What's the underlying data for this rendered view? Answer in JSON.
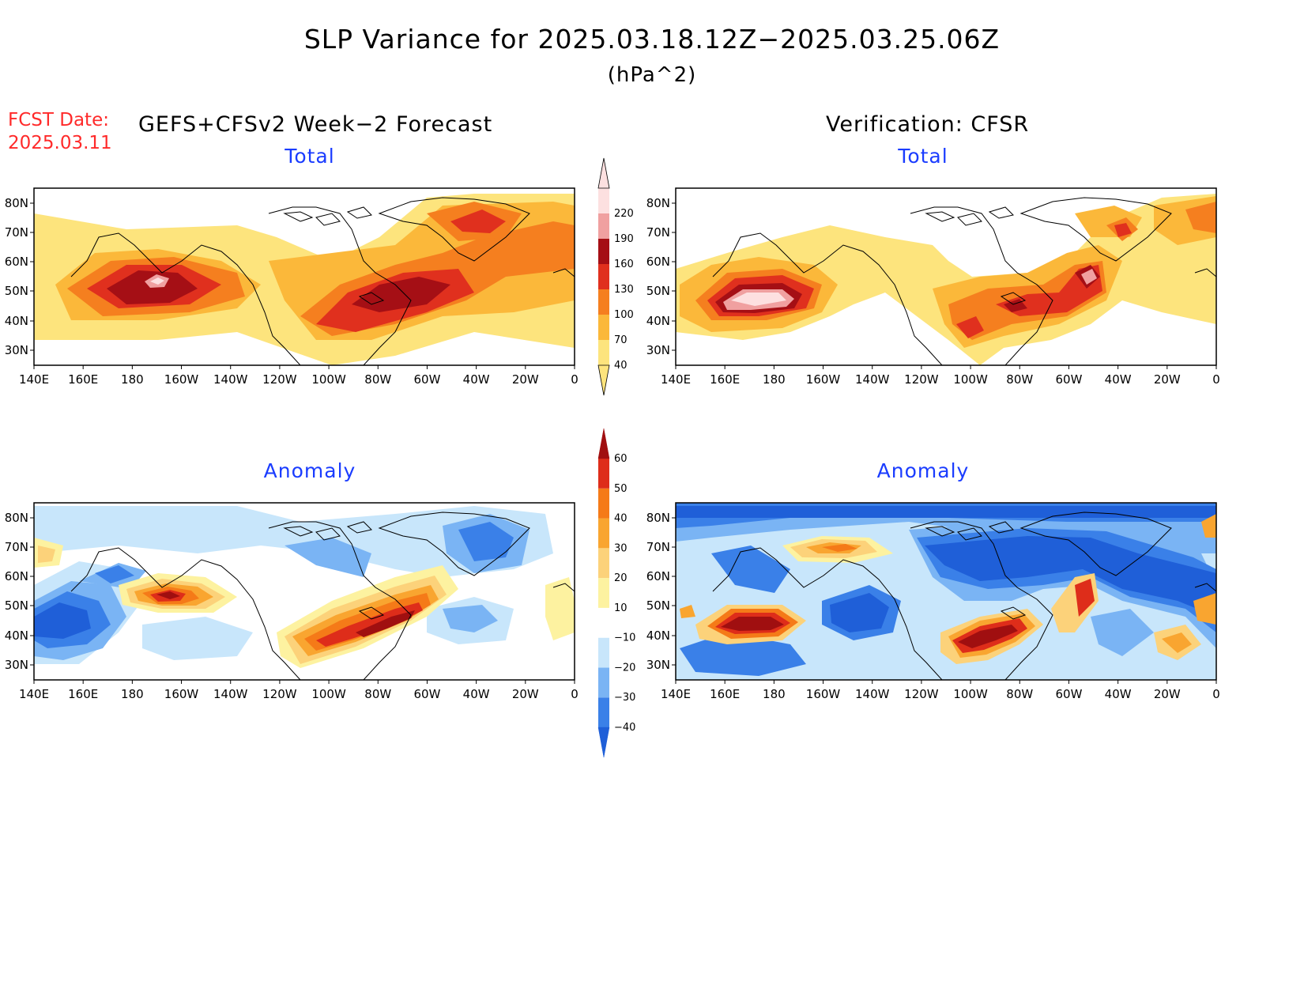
{
  "title": "SLP Variance for 2025.03.18.12Z−2025.03.25.06Z",
  "units": "(hPa^2)",
  "fcst_date": {
    "label": "FCST Date:",
    "value": "2025.03.11"
  },
  "left_header": "GEFS+CFSv2 Week−2 Forecast",
  "right_header": "Verification: CFSR",
  "panels": {
    "fcst_total": {
      "subtitle": "Total"
    },
    "verif_total": {
      "subtitle": "Total"
    },
    "fcst_anom": {
      "subtitle": "Anomaly"
    },
    "verif_anom": {
      "subtitle": "Anomaly"
    }
  },
  "lat_labels": [
    "80N",
    "70N",
    "60N",
    "50N",
    "40N",
    "30N"
  ],
  "lon_labels": [
    "140E",
    "160E",
    "180",
    "160W",
    "140W",
    "120W",
    "100W",
    "80W",
    "60W",
    "40W",
    "20W",
    "0"
  ],
  "total_colorbar": {
    "levels": [
      "40",
      "70",
      "100",
      "130",
      "160",
      "190",
      "220"
    ],
    "colors": [
      "#fde47d",
      "#fbb83a",
      "#f57f1f",
      "#e0301e",
      "#a50f15",
      "#f0a0a0",
      "#fde0e0"
    ]
  },
  "anomaly_colorbar": {
    "levels": [
      "−40",
      "−30",
      "−20",
      "−10",
      "10",
      "20",
      "30",
      "40",
      "50",
      "60"
    ],
    "colors": [
      "#1f5fd8",
      "#3a80e8",
      "#7ab4f4",
      "#c8e6fb",
      "#ffffff",
      "#fdf2a0",
      "#fcd27a",
      "#f9a530",
      "#f57a18",
      "#de2d1a",
      "#a00f10"
    ]
  }
}
